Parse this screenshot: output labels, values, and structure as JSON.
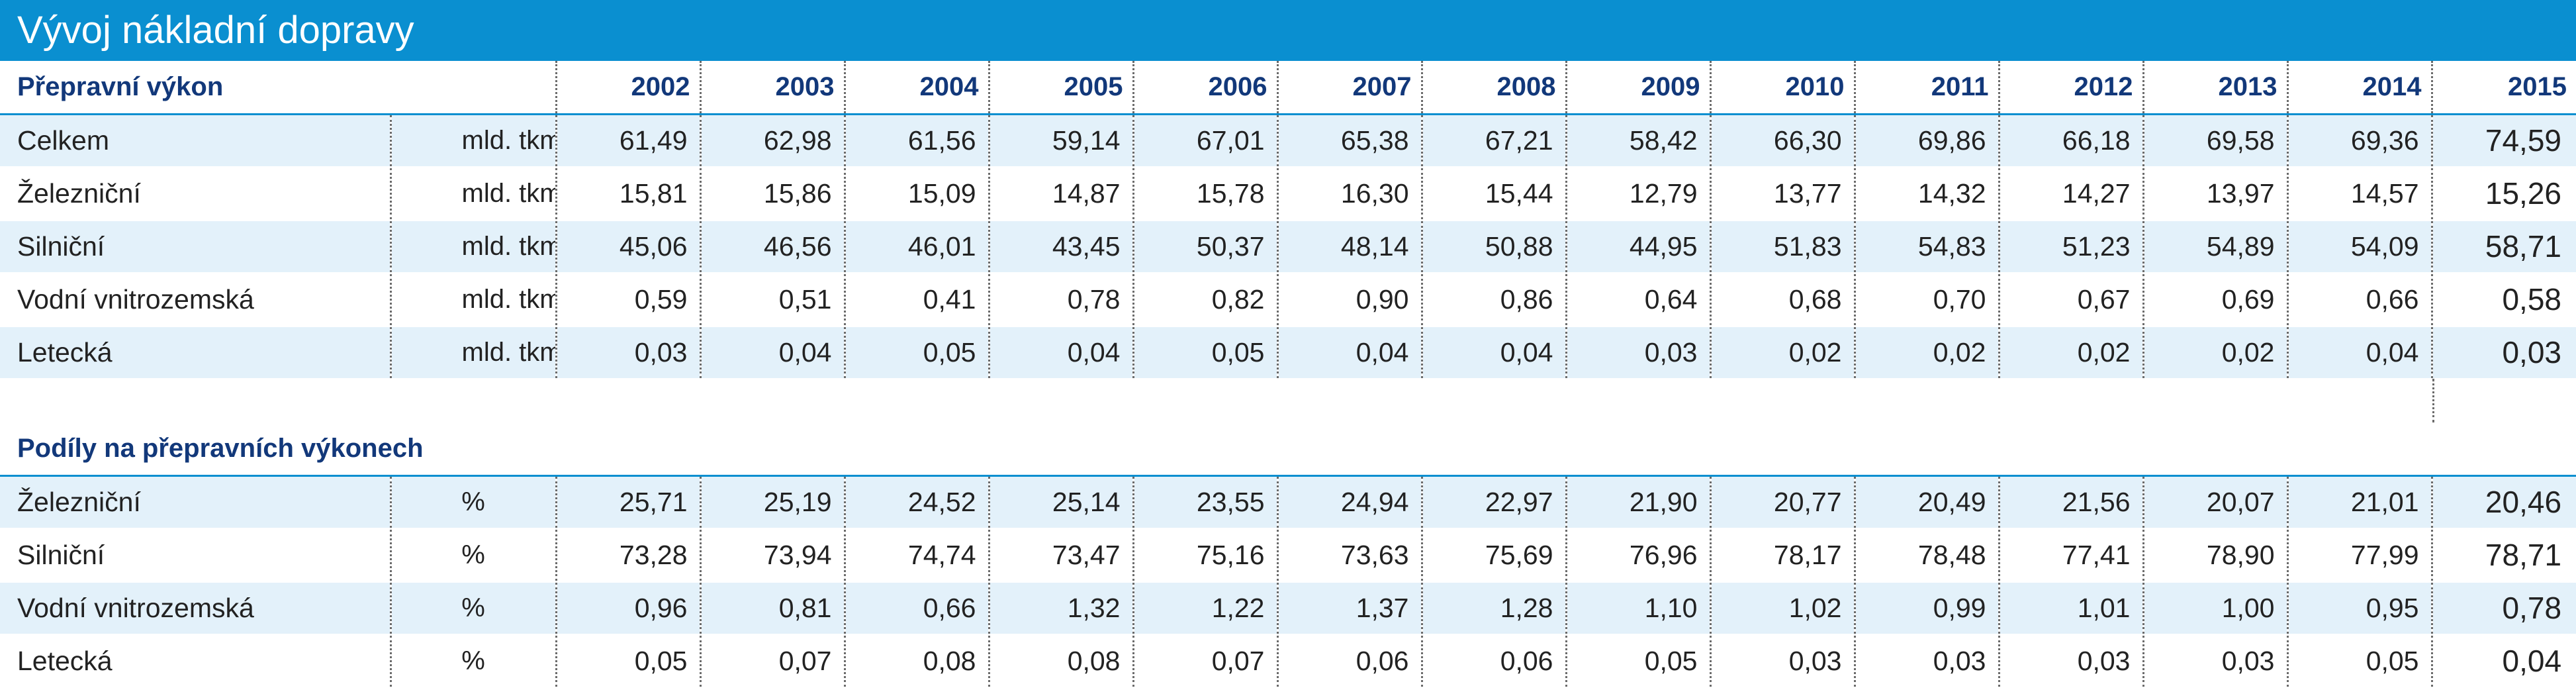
{
  "title": "Vývoj nákladní dopravy",
  "years": [
    "2002",
    "2003",
    "2004",
    "2005",
    "2006",
    "2007",
    "2008",
    "2009",
    "2010",
    "2011",
    "2012",
    "2013",
    "2014",
    "2015"
  ],
  "section1": {
    "title": "Přepravní výkon",
    "rows": [
      {
        "label": "Celkem",
        "unit": "mld. tkm",
        "values": [
          "61,49",
          "62,98",
          "61,56",
          "59,14",
          "67,01",
          "65,38",
          "67,21",
          "58,42",
          "66,30",
          "69,86",
          "66,18",
          "69,58",
          "69,36",
          "74,59"
        ]
      },
      {
        "label": "Železniční",
        "unit": "mld. tkm",
        "values": [
          "15,81",
          "15,86",
          "15,09",
          "14,87",
          "15,78",
          "16,30",
          "15,44",
          "12,79",
          "13,77",
          "14,32",
          "14,27",
          "13,97",
          "14,57",
          "15,26"
        ]
      },
      {
        "label": "Silniční",
        "unit": "mld. tkm",
        "values": [
          "45,06",
          "46,56",
          "46,01",
          "43,45",
          "50,37",
          "48,14",
          "50,88",
          "44,95",
          "51,83",
          "54,83",
          "51,23",
          "54,89",
          "54,09",
          "58,71"
        ]
      },
      {
        "label": "Vodní vnitrozemská",
        "unit": "mld. tkm",
        "values": [
          "0,59",
          "0,51",
          "0,41",
          "0,78",
          "0,82",
          "0,90",
          "0,86",
          "0,64",
          "0,68",
          "0,70",
          "0,67",
          "0,69",
          "0,66",
          "0,58"
        ]
      },
      {
        "label": "Letecká",
        "unit": "mld. tkm",
        "values": [
          "0,03",
          "0,04",
          "0,05",
          "0,04",
          "0,05",
          "0,04",
          "0,04",
          "0,03",
          "0,02",
          "0,02",
          "0,02",
          "0,02",
          "0,04",
          "0,03"
        ]
      }
    ]
  },
  "section2": {
    "title": "Podíly na přepravních výkonech",
    "rows": [
      {
        "label": "Železniční",
        "unit": "%",
        "values": [
          "25,71",
          "25,19",
          "24,52",
          "25,14",
          "23,55",
          "24,94",
          "22,97",
          "21,90",
          "20,77",
          "20,49",
          "21,56",
          "20,07",
          "21,01",
          "20,46"
        ]
      },
      {
        "label": "Silniční",
        "unit": "%",
        "values": [
          "73,28",
          "73,94",
          "74,74",
          "73,47",
          "75,16",
          "73,63",
          "75,69",
          "76,96",
          "78,17",
          "78,48",
          "77,41",
          "78,90",
          "77,99",
          "78,71"
        ]
      },
      {
        "label": "Vodní vnitrozemská",
        "unit": "%",
        "values": [
          "0,96",
          "0,81",
          "0,66",
          "1,32",
          "1,22",
          "1,37",
          "1,28",
          "1,10",
          "1,02",
          "0,99",
          "1,01",
          "1,00",
          "0,95",
          "0,78"
        ]
      },
      {
        "label": "Letecká",
        "unit": "%",
        "values": [
          "0,05",
          "0,07",
          "0,08",
          "0,08",
          "0,07",
          "0,06",
          "0,06",
          "0,05",
          "0,03",
          "0,03",
          "0,03",
          "0,03",
          "0,05",
          "0,04"
        ]
      }
    ]
  },
  "colors": {
    "title_bg": "#0a8fd0",
    "header_text": "#12387a",
    "row_shade": "#e3f1fa"
  }
}
